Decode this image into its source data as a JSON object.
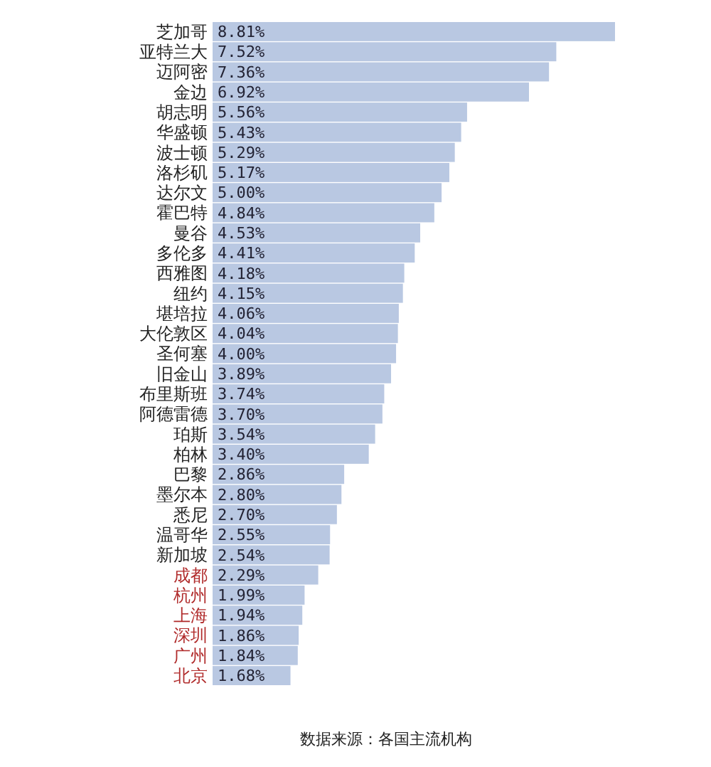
{
  "chart_data": {
    "type": "bar",
    "orientation": "horizontal",
    "categories": [
      "芝加哥",
      "亚特兰大",
      "迈阿密",
      "金边",
      "胡志明",
      "华盛顿",
      "波士顿",
      "洛杉矶",
      "达尔文",
      "霍巴特",
      "曼谷",
      "多伦多",
      "西雅图",
      "纽约",
      "堪培拉",
      "大伦敦区",
      "圣何塞",
      "旧金山",
      "布里斯班",
      "阿德雷德",
      "珀斯",
      "柏林",
      "巴黎",
      "墨尔本",
      "悉尼",
      "温哥华",
      "新加坡",
      "成都",
      "杭州",
      "上海",
      "深圳",
      "广州",
      "北京"
    ],
    "values": [
      8.81,
      7.52,
      7.36,
      6.92,
      5.56,
      5.43,
      5.29,
      5.17,
      5.0,
      4.84,
      4.53,
      4.41,
      4.18,
      4.15,
      4.06,
      4.04,
      4.0,
      3.89,
      3.74,
      3.7,
      3.54,
      3.4,
      2.86,
      2.8,
      2.7,
      2.55,
      2.54,
      2.29,
      1.99,
      1.94,
      1.86,
      1.84,
      1.68
    ],
    "value_labels": [
      "8.81%",
      "7.52%",
      "7.36%",
      "6.92%",
      "5.56%",
      "5.43%",
      "5.29%",
      "5.17%",
      "5.00%",
      "4.84%",
      "4.53%",
      "4.41%",
      "4.18%",
      "4.15%",
      "4.06%",
      "4.04%",
      "4.00%",
      "3.89%",
      "3.74%",
      "3.70%",
      "3.54%",
      "3.40%",
      "2.86%",
      "2.80%",
      "2.70%",
      "2.55%",
      "2.54%",
      "2.29%",
      "1.99%",
      "1.94%",
      "1.86%",
      "1.84%",
      "1.68%"
    ],
    "color": "#b9c8e2",
    "annotations": [
      "数据来源：各国主流机构"
    ]
  }
}
